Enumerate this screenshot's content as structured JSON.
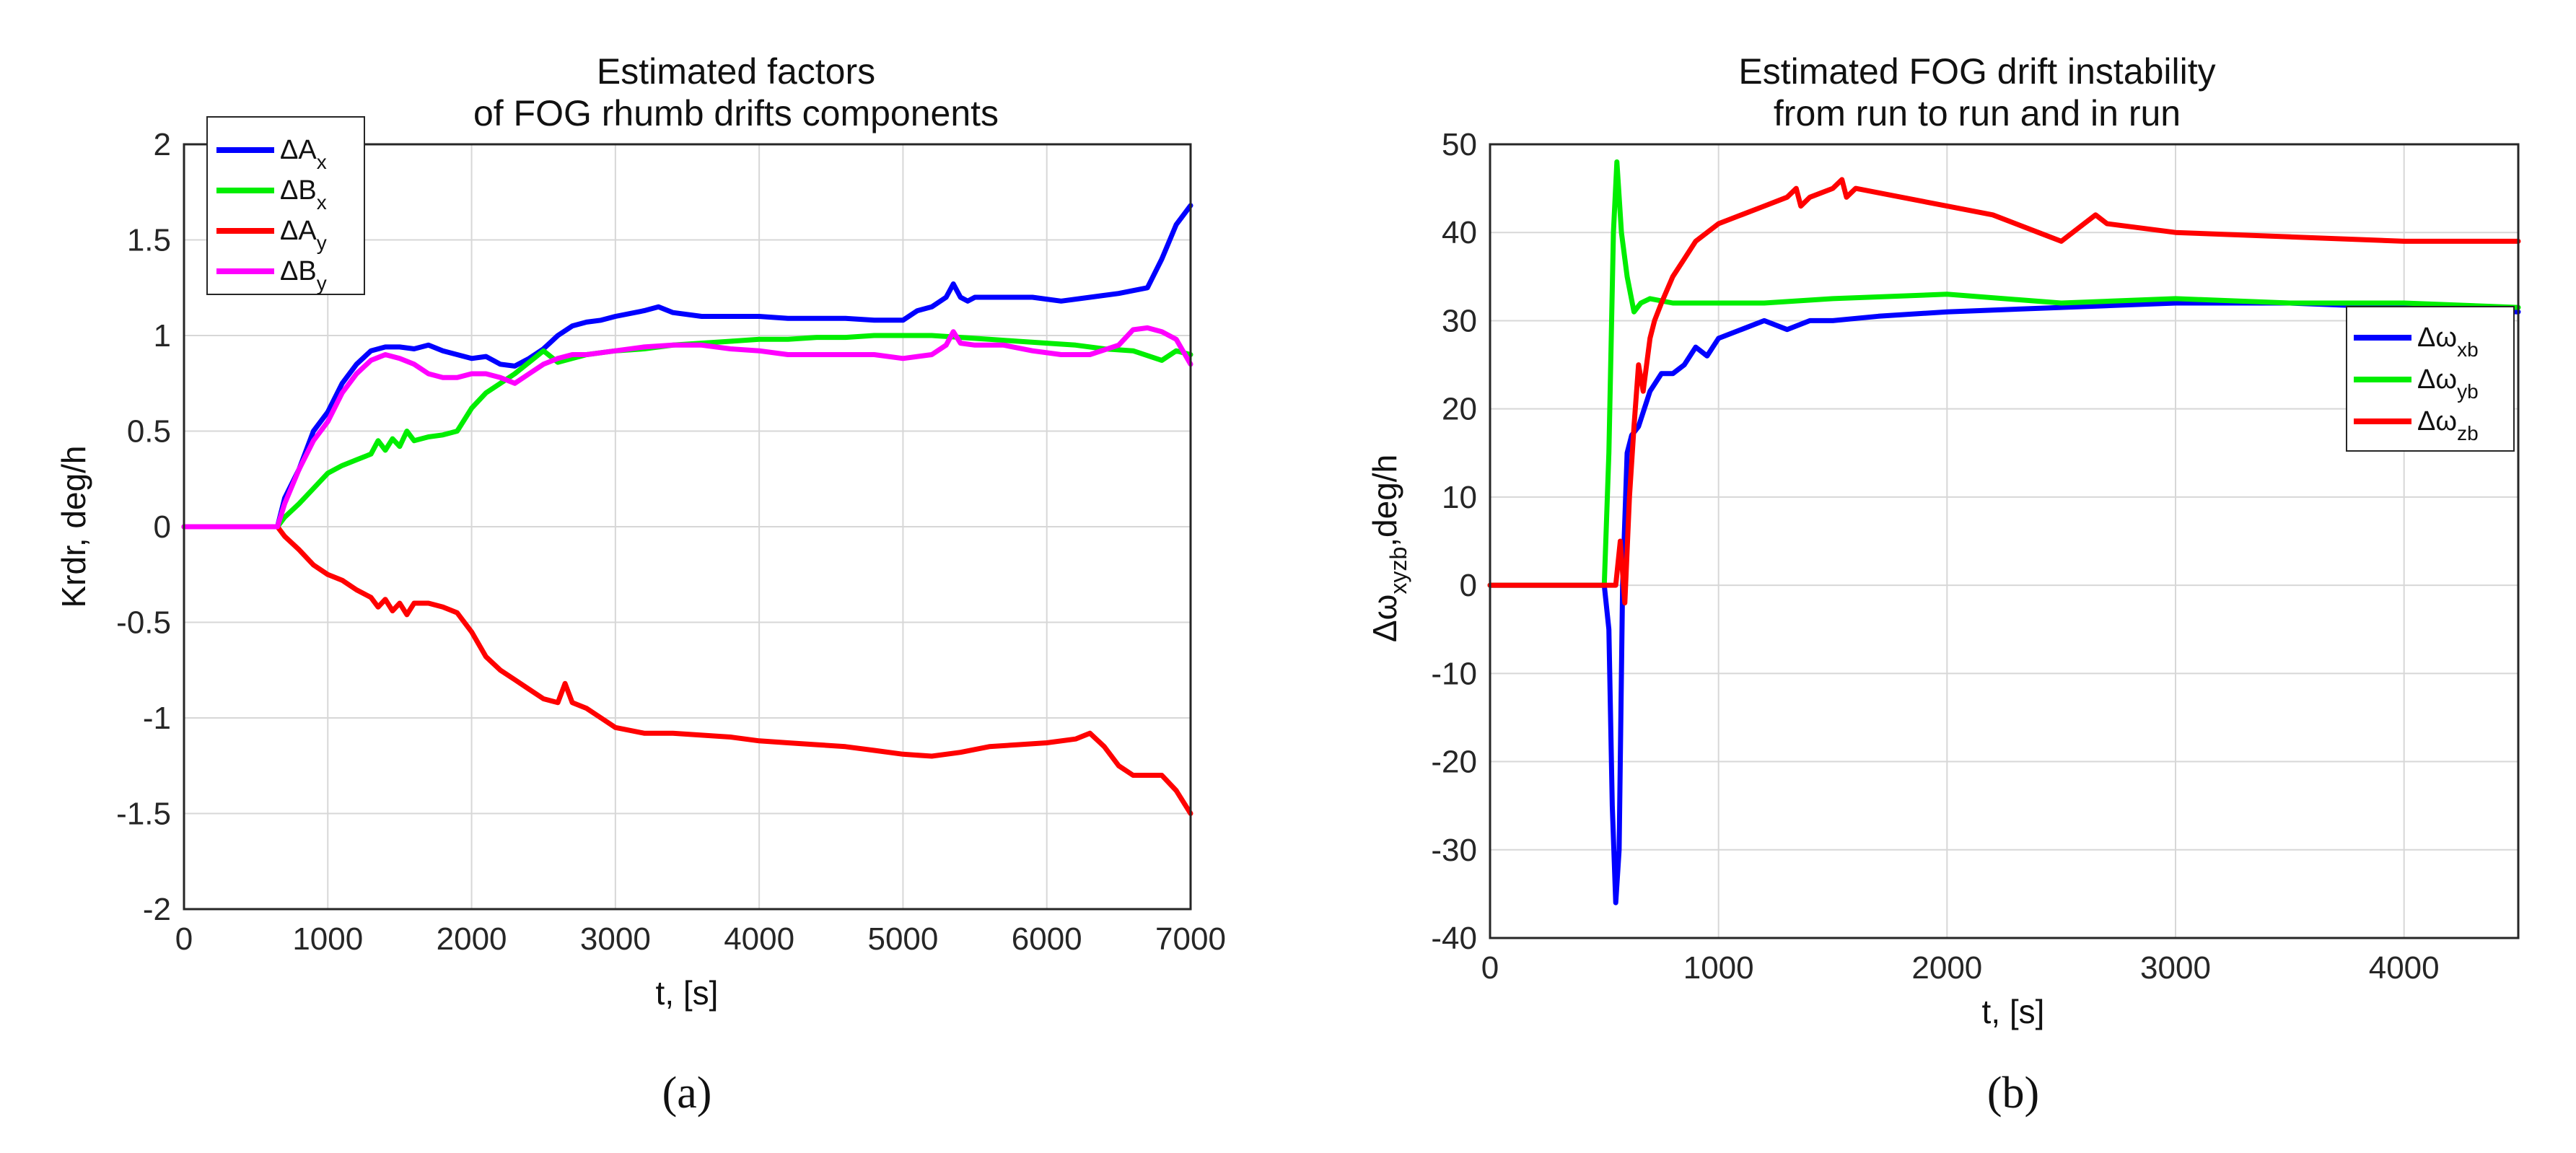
{
  "chart_data": [
    {
      "type": "line",
      "panel_label": "(a)",
      "title": [
        "Estimated factors",
        "of FOG rhumb drifts components"
      ],
      "xlabel": "t, [s]",
      "ylabel": "Krdr, deg/h",
      "xlim": [
        0,
        7000
      ],
      "ylim": [
        -2,
        2
      ],
      "xticks": [
        0,
        1000,
        2000,
        3000,
        4000,
        5000,
        6000,
        7000
      ],
      "xtick_labels": [
        "0",
        "1000",
        "2000",
        "3000",
        "4000",
        "5000",
        "6000",
        "7000"
      ],
      "yticks": [
        2,
        1.5,
        1,
        0.5,
        0,
        -0.5,
        -1,
        -1.5,
        -2
      ],
      "ytick_labels": [
        "2",
        "1.5",
        "1",
        "0.5",
        "0",
        "-0.5",
        "-1",
        "-1.5",
        "-2"
      ],
      "grid": true,
      "legend_position": "top-left",
      "series": [
        {
          "name": "ΔA",
          "sub": "x",
          "color": "#0000ff",
          "x": [
            0,
            650,
            700,
            800,
            900,
            1000,
            1100,
            1200,
            1300,
            1400,
            1500,
            1600,
            1700,
            1800,
            1900,
            2000,
            2100,
            2200,
            2300,
            2400,
            2500,
            2600,
            2700,
            2800,
            2900,
            3000,
            3200,
            3300,
            3400,
            3600,
            3800,
            4000,
            4200,
            4400,
            4600,
            4800,
            5000,
            5100,
            5200,
            5300,
            5350,
            5400,
            5450,
            5500,
            5700,
            5900,
            6100,
            6300,
            6500,
            6700,
            6800,
            6900,
            7000
          ],
          "y": [
            0,
            0,
            0.15,
            0.3,
            0.5,
            0.6,
            0.75,
            0.85,
            0.92,
            0.94,
            0.94,
            0.93,
            0.95,
            0.92,
            0.9,
            0.88,
            0.89,
            0.85,
            0.84,
            0.88,
            0.93,
            1.0,
            1.05,
            1.07,
            1.08,
            1.1,
            1.13,
            1.15,
            1.12,
            1.1,
            1.1,
            1.1,
            1.09,
            1.09,
            1.09,
            1.08,
            1.08,
            1.13,
            1.15,
            1.2,
            1.27,
            1.2,
            1.18,
            1.2,
            1.2,
            1.2,
            1.18,
            1.2,
            1.22,
            1.25,
            1.4,
            1.58,
            1.68
          ]
        },
        {
          "name": "ΔB",
          "sub": "x",
          "color": "#00ee00",
          "x": [
            0,
            650,
            700,
            800,
            900,
            1000,
            1100,
            1200,
            1300,
            1350,
            1400,
            1450,
            1500,
            1550,
            1600,
            1700,
            1800,
            1900,
            2000,
            2100,
            2200,
            2300,
            2400,
            2500,
            2600,
            2700,
            2800,
            3000,
            3200,
            3400,
            3600,
            3800,
            4000,
            4200,
            4400,
            4600,
            4800,
            5000,
            5200,
            5400,
            5600,
            5800,
            6000,
            6200,
            6400,
            6600,
            6800,
            6900,
            7000
          ],
          "y": [
            0,
            0,
            0.05,
            0.12,
            0.2,
            0.28,
            0.32,
            0.35,
            0.38,
            0.45,
            0.4,
            0.46,
            0.42,
            0.5,
            0.45,
            0.47,
            0.48,
            0.5,
            0.62,
            0.7,
            0.75,
            0.8,
            0.86,
            0.92,
            0.86,
            0.88,
            0.9,
            0.92,
            0.93,
            0.95,
            0.96,
            0.97,
            0.98,
            0.98,
            0.99,
            0.99,
            1.0,
            1.0,
            1.0,
            0.99,
            0.98,
            0.97,
            0.96,
            0.95,
            0.93,
            0.92,
            0.87,
            0.92,
            0.9
          ]
        },
        {
          "name": "ΔA",
          "sub": "y",
          "color": "#ff0000",
          "x": [
            0,
            650,
            700,
            800,
            900,
            1000,
            1100,
            1200,
            1300,
            1350,
            1400,
            1450,
            1500,
            1550,
            1600,
            1700,
            1800,
            1900,
            2000,
            2100,
            2200,
            2300,
            2400,
            2500,
            2600,
            2650,
            2700,
            2800,
            2900,
            3000,
            3200,
            3400,
            3600,
            3800,
            4000,
            4200,
            4400,
            4600,
            4800,
            5000,
            5200,
            5400,
            5600,
            5800,
            6000,
            6200,
            6300,
            6400,
            6500,
            6600,
            6800,
            6900,
            7000
          ],
          "y": [
            0,
            0,
            -0.05,
            -0.12,
            -0.2,
            -0.25,
            -0.28,
            -0.33,
            -0.37,
            -0.42,
            -0.38,
            -0.44,
            -0.4,
            -0.46,
            -0.4,
            -0.4,
            -0.42,
            -0.45,
            -0.55,
            -0.68,
            -0.75,
            -0.8,
            -0.85,
            -0.9,
            -0.92,
            -0.82,
            -0.92,
            -0.95,
            -1.0,
            -1.05,
            -1.08,
            -1.08,
            -1.09,
            -1.1,
            -1.12,
            -1.13,
            -1.14,
            -1.15,
            -1.17,
            -1.19,
            -1.2,
            -1.18,
            -1.15,
            -1.14,
            -1.13,
            -1.11,
            -1.08,
            -1.15,
            -1.25,
            -1.3,
            -1.3,
            -1.38,
            -1.5
          ]
        },
        {
          "name": "ΔB",
          "sub": "y",
          "color": "#ff00ff",
          "x": [
            0,
            650,
            700,
            800,
            900,
            1000,
            1100,
            1200,
            1300,
            1400,
            1500,
            1600,
            1700,
            1800,
            1900,
            2000,
            2100,
            2200,
            2300,
            2400,
            2500,
            2600,
            2700,
            2800,
            3000,
            3200,
            3400,
            3600,
            3800,
            4000,
            4200,
            4400,
            4600,
            4800,
            5000,
            5200,
            5300,
            5350,
            5400,
            5500,
            5700,
            5900,
            6100,
            6300,
            6500,
            6600,
            6700,
            6800,
            6900,
            7000
          ],
          "y": [
            0,
            0,
            0.12,
            0.3,
            0.45,
            0.55,
            0.7,
            0.8,
            0.87,
            0.9,
            0.88,
            0.85,
            0.8,
            0.78,
            0.78,
            0.8,
            0.8,
            0.78,
            0.75,
            0.8,
            0.85,
            0.88,
            0.9,
            0.9,
            0.92,
            0.94,
            0.95,
            0.95,
            0.93,
            0.92,
            0.9,
            0.9,
            0.9,
            0.9,
            0.88,
            0.9,
            0.95,
            1.02,
            0.96,
            0.95,
            0.95,
            0.92,
            0.9,
            0.9,
            0.95,
            1.03,
            1.04,
            1.02,
            0.98,
            0.85
          ]
        }
      ]
    },
    {
      "type": "line",
      "panel_label": "(b)",
      "title": [
        "Estimated FOG drift instability",
        "from run to run and in run"
      ],
      "xlabel": "t, [s]",
      "ylabel": "Δω",
      "ylabel_sub": "xyzb",
      "ylabel_suffix": ",deg/h",
      "xlim": [
        0,
        4500
      ],
      "ylim": [
        -40,
        50
      ],
      "xticks": [
        0,
        1000,
        2000,
        3000,
        4000
      ],
      "xtick_labels": [
        "0",
        "1000",
        "2000",
        "3000",
        "4000"
      ],
      "yticks": [
        50,
        40,
        30,
        20,
        10,
        0,
        -10,
        -20,
        -30,
        -40
      ],
      "ytick_labels": [
        "50",
        "40",
        "30",
        "20",
        "10",
        "0",
        "-10",
        "-20",
        "-30",
        "-40"
      ],
      "grid": true,
      "legend_position": "right",
      "series": [
        {
          "name": "Δω",
          "sub": "xb",
          "color": "#0000ff",
          "x": [
            0,
            500,
            520,
            535,
            550,
            565,
            580,
            600,
            620,
            650,
            700,
            750,
            800,
            850,
            900,
            950,
            1000,
            1100,
            1200,
            1300,
            1400,
            1500,
            1700,
            2000,
            2500,
            3000,
            3500,
            4000,
            4500
          ],
          "y": [
            0,
            0,
            -5,
            -25,
            -36,
            -30,
            0,
            15,
            17,
            18,
            22,
            24,
            24,
            25,
            27,
            26,
            28,
            29,
            30,
            29,
            30,
            30,
            30.5,
            31,
            31.5,
            32,
            32,
            31.5,
            31
          ]
        },
        {
          "name": "Δω",
          "sub": "yb",
          "color": "#00ee00",
          "x": [
            0,
            500,
            520,
            540,
            555,
            575,
            600,
            630,
            660,
            700,
            800,
            1000,
            1200,
            1500,
            2000,
            2500,
            3000,
            3500,
            4000,
            4500
          ],
          "y": [
            0,
            0,
            15,
            40,
            48,
            40,
            35,
            31,
            32,
            32.5,
            32,
            32,
            32,
            32.5,
            33,
            32,
            32.5,
            32,
            32,
            31.5
          ]
        },
        {
          "name": "Δω",
          "sub": "zb",
          "color": "#ff0000",
          "x": [
            0,
            550,
            570,
            590,
            610,
            630,
            650,
            670,
            700,
            720,
            750,
            800,
            850,
            900,
            1000,
            1100,
            1200,
            1300,
            1340,
            1360,
            1400,
            1500,
            1540,
            1560,
            1600,
            1800,
            2000,
            2200,
            2400,
            2500,
            2600,
            2650,
            2700,
            3000,
            3500,
            4000,
            4500
          ],
          "y": [
            0,
            0,
            5,
            -2,
            10,
            18,
            25,
            22,
            28,
            30,
            32,
            35,
            37,
            39,
            41,
            42,
            43,
            44,
            45,
            43,
            44,
            45,
            46,
            44,
            45,
            44,
            43,
            42,
            40,
            39,
            41,
            42,
            41,
            40,
            39.5,
            39,
            39
          ]
        }
      ]
    }
  ]
}
